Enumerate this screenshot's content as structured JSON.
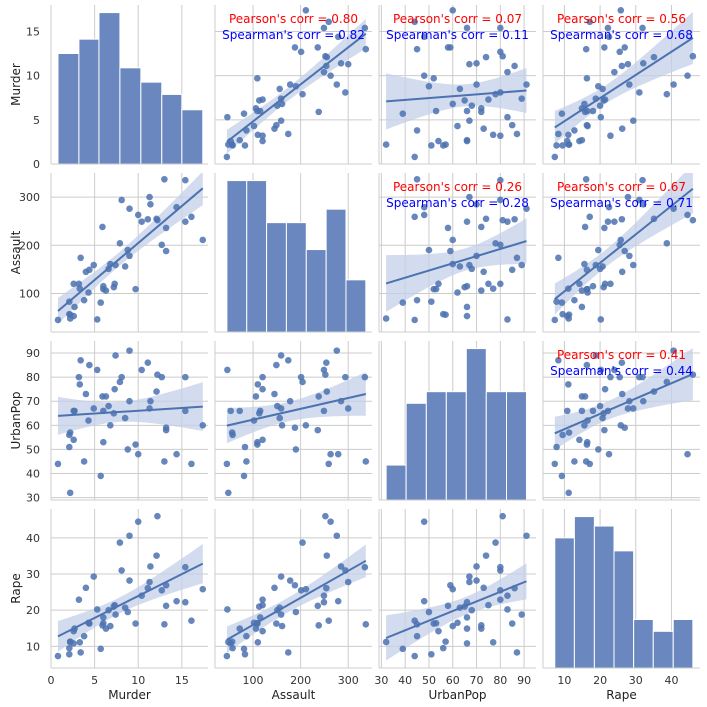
{
  "chart_data": {
    "type": "pairplot",
    "variables": [
      "Murder",
      "Assault",
      "UrbanPop",
      "Rape"
    ],
    "axis_ranges": {
      "Murder": [
        0,
        18
      ],
      "Assault": [
        20,
        350
      ],
      "UrbanPop": [
        29,
        95
      ],
      "Rape": [
        4,
        48
      ]
    },
    "ticks": {
      "Murder": [
        0,
        5,
        10,
        15
      ],
      "Assault": [
        100,
        200,
        300
      ],
      "UrbanPop": [
        30,
        40,
        50,
        60,
        70,
        80,
        90
      ],
      "Rape": [
        10,
        20,
        30,
        40
      ]
    },
    "tick_labels": {
      "Murder": [
        "0",
        "5",
        "10",
        "15"
      ],
      "Assault": [
        "100",
        "200",
        "300"
      ],
      "UrbanPop": [
        "30",
        "40",
        "50",
        "60",
        "70",
        "80",
        "90"
      ],
      "Rape": [
        "10",
        "20",
        "30",
        "40"
      ]
    },
    "grid": true,
    "colors": {
      "points": "#4c72b0",
      "regression_line": "#4c72b0",
      "confidence_band": "#c3d0e8",
      "histogram": "#6a88bf",
      "pearson_text": "#ff0000",
      "spearman_text": "#0000ff",
      "grid": "#cccccc"
    },
    "observations": [
      {
        "Murder": 13.2,
        "Assault": 236,
        "UrbanPop": 58,
        "Rape": 21.2
      },
      {
        "Murder": 10.0,
        "Assault": 263,
        "UrbanPop": 48,
        "Rape": 44.5
      },
      {
        "Murder": 8.1,
        "Assault": 294,
        "UrbanPop": 80,
        "Rape": 31.0
      },
      {
        "Murder": 8.8,
        "Assault": 190,
        "UrbanPop": 50,
        "Rape": 19.5
      },
      {
        "Murder": 9.0,
        "Assault": 276,
        "UrbanPop": 91,
        "Rape": 40.6
      },
      {
        "Murder": 7.9,
        "Assault": 204,
        "UrbanPop": 78,
        "Rape": 38.7
      },
      {
        "Murder": 3.3,
        "Assault": 110,
        "UrbanPop": 77,
        "Rape": 11.1
      },
      {
        "Murder": 5.9,
        "Assault": 238,
        "UrbanPop": 72,
        "Rape": 15.8
      },
      {
        "Murder": 15.4,
        "Assault": 335,
        "UrbanPop": 80,
        "Rape": 31.9
      },
      {
        "Murder": 17.4,
        "Assault": 211,
        "UrbanPop": 60,
        "Rape": 25.8
      },
      {
        "Murder": 5.3,
        "Assault": 46,
        "UrbanPop": 83,
        "Rape": 20.2
      },
      {
        "Murder": 2.6,
        "Assault": 120,
        "UrbanPop": 54,
        "Rape": 14.2
      },
      {
        "Murder": 10.4,
        "Assault": 249,
        "UrbanPop": 83,
        "Rape": 24.0
      },
      {
        "Murder": 7.2,
        "Assault": 113,
        "UrbanPop": 65,
        "Rape": 21.0
      },
      {
        "Murder": 2.2,
        "Assault": 56,
        "UrbanPop": 57,
        "Rape": 11.3
      },
      {
        "Murder": 6.0,
        "Assault": 115,
        "UrbanPop": 66,
        "Rape": 18.0
      },
      {
        "Murder": 9.7,
        "Assault": 109,
        "UrbanPop": 52,
        "Rape": 16.3
      },
      {
        "Murder": 15.4,
        "Assault": 249,
        "UrbanPop": 66,
        "Rape": 22.2
      },
      {
        "Murder": 2.1,
        "Assault": 83,
        "UrbanPop": 51,
        "Rape": 7.8
      },
      {
        "Murder": 11.3,
        "Assault": 300,
        "UrbanPop": 67,
        "Rape": 27.8
      },
      {
        "Murder": 4.4,
        "Assault": 149,
        "UrbanPop": 85,
        "Rape": 16.3
      },
      {
        "Murder": 12.1,
        "Assault": 255,
        "UrbanPop": 74,
        "Rape": 35.1
      },
      {
        "Murder": 2.7,
        "Assault": 72,
        "UrbanPop": 66,
        "Rape": 14.9
      },
      {
        "Murder": 16.1,
        "Assault": 259,
        "UrbanPop": 44,
        "Rape": 17.1
      },
      {
        "Murder": 9.0,
        "Assault": 178,
        "UrbanPop": 70,
        "Rape": 28.2
      },
      {
        "Murder": 6.0,
        "Assault": 109,
        "UrbanPop": 53,
        "Rape": 16.4
      },
      {
        "Murder": 4.3,
        "Assault": 102,
        "UrbanPop": 62,
        "Rape": 16.5
      },
      {
        "Murder": 12.2,
        "Assault": 252,
        "UrbanPop": 81,
        "Rape": 46.0
      },
      {
        "Murder": 2.1,
        "Assault": 57,
        "UrbanPop": 56,
        "Rape": 9.5
      },
      {
        "Murder": 7.4,
        "Assault": 159,
        "UrbanPop": 89,
        "Rape": 18.8
      },
      {
        "Murder": 11.4,
        "Assault": 285,
        "UrbanPop": 70,
        "Rape": 32.1
      },
      {
        "Murder": 11.1,
        "Assault": 254,
        "UrbanPop": 86,
        "Rape": 26.1
      },
      {
        "Murder": 13.0,
        "Assault": 337,
        "UrbanPop": 45,
        "Rape": 16.1
      },
      {
        "Murder": 0.8,
        "Assault": 45,
        "UrbanPop": 44,
        "Rape": 7.3
      },
      {
        "Murder": 7.3,
        "Assault": 120,
        "UrbanPop": 75,
        "Rape": 21.4
      },
      {
        "Murder": 6.6,
        "Assault": 151,
        "UrbanPop": 68,
        "Rape": 20.0
      },
      {
        "Murder": 4.9,
        "Assault": 159,
        "UrbanPop": 67,
        "Rape": 29.3
      },
      {
        "Murder": 6.3,
        "Assault": 106,
        "UrbanPop": 72,
        "Rape": 14.9
      },
      {
        "Murder": 3.4,
        "Assault": 174,
        "UrbanPop": 87,
        "Rape": 8.3
      },
      {
        "Murder": 14.4,
        "Assault": 279,
        "UrbanPop": 48,
        "Rape": 22.5
      },
      {
        "Murder": 3.8,
        "Assault": 86,
        "UrbanPop": 45,
        "Rape": 12.8
      },
      {
        "Murder": 13.2,
        "Assault": 188,
        "UrbanPop": 59,
        "Rape": 26.9
      },
      {
        "Murder": 12.7,
        "Assault": 201,
        "UrbanPop": 80,
        "Rape": 25.5
      },
      {
        "Murder": 3.2,
        "Assault": 120,
        "UrbanPop": 80,
        "Rape": 22.9
      },
      {
        "Murder": 2.2,
        "Assault": 48,
        "UrbanPop": 32,
        "Rape": 11.2
      },
      {
        "Murder": 8.5,
        "Assault": 156,
        "UrbanPop": 63,
        "Rape": 20.7
      },
      {
        "Murder": 4.0,
        "Assault": 145,
        "UrbanPop": 73,
        "Rape": 26.2
      },
      {
        "Murder": 5.7,
        "Assault": 81,
        "UrbanPop": 39,
        "Rape": 9.3
      },
      {
        "Murder": 2.6,
        "Assault": 53,
        "UrbanPop": 66,
        "Rape": 10.8
      },
      {
        "Murder": 6.8,
        "Assault": 161,
        "UrbanPop": 60,
        "Rape": 15.6
      }
    ],
    "histograms": {
      "Murder": {
        "bin_edges": [
          0.8,
          3.2,
          5.5,
          7.9,
          10.3,
          12.7,
          15.0,
          17.4
        ],
        "counts": [
          10.8,
          12.2,
          14.8,
          9.4,
          8.0,
          6.8,
          5.3
        ]
      },
      "Assault": {
        "bin_edges": [
          45,
          86.7,
          128.4,
          170.1,
          211.9,
          253.6,
          295.3,
          337
        ],
        "counts": [
          9,
          9,
          6.5,
          6.5,
          4.9,
          7.3,
          3.1
        ]
      },
      "UrbanPop": {
        "bin_edges": [
          32,
          40.4,
          48.9,
          57.3,
          65.7,
          74.1,
          82.6,
          91
        ],
        "counts": [
          3.0,
          8.3,
          9.3,
          9.3,
          13.0,
          9.3,
          9.3
        ]
      },
      "Rape": {
        "bin_edges": [
          7.3,
          12.8,
          18.4,
          23.9,
          29.4,
          34.9,
          40.5,
          46.0
        ],
        "counts": [
          11.0,
          12.8,
          12.0,
          9.9,
          4.1,
          3.1,
          4.1
        ]
      }
    },
    "correlations": [
      {
        "x": "Assault",
        "y": "Murder",
        "pearson": "Pearson's corr = 0.80",
        "spearman": "Spearman's corr = 0.82"
      },
      {
        "x": "UrbanPop",
        "y": "Murder",
        "pearson": "Pearson's corr = 0.07",
        "spearman": "Spearman's corr = 0.11"
      },
      {
        "x": "Rape",
        "y": "Murder",
        "pearson": "Pearson's corr = 0.56",
        "spearman": "Spearman's corr = 0.68"
      },
      {
        "x": "UrbanPop",
        "y": "Assault",
        "pearson": "Pearson's corr = 0.26",
        "spearman": "Spearman's corr = 0.28"
      },
      {
        "x": "Rape",
        "y": "Assault",
        "pearson": "Pearson's corr = 0.67",
        "spearman": "Spearman's corr = 0.71"
      },
      {
        "x": "Rape",
        "y": "UrbanPop",
        "pearson": "Pearson's corr = 0.41",
        "spearman": "Spearman's corr = 0.44"
      }
    ]
  }
}
